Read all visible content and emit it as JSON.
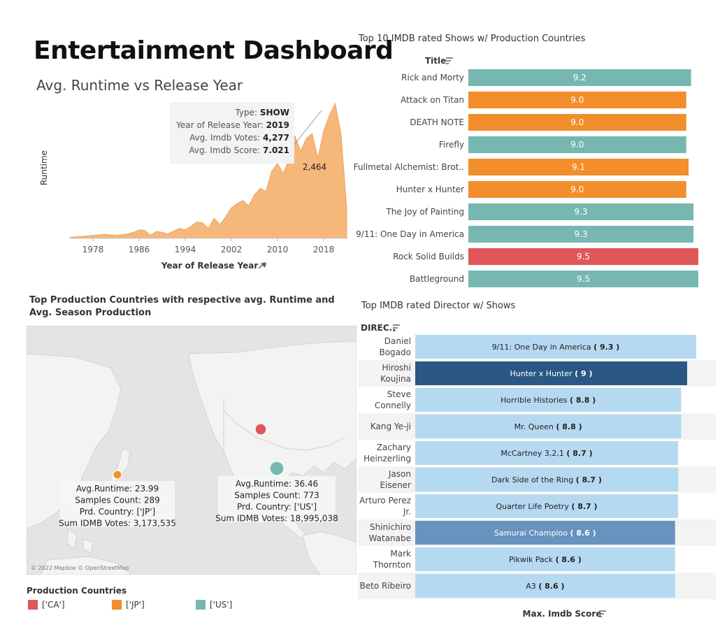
{
  "dashboard_title": "Entertainment Dashboard",
  "area_chart": {
    "title": "Avg. Runtime vs Release Year",
    "ylabel": "Runtime",
    "xlabel": "Year of Release Year",
    "color": "#F5B77A",
    "point_label": "2,464",
    "tooltip": [
      {
        "label": "Type:",
        "value": "SHOW"
      },
      {
        "label": "Year of Release Year:",
        "value": "2019"
      },
      {
        "label": "Avg. Imdb Votes:",
        "value": "4,277"
      },
      {
        "label": "Avg. Imdb Score:",
        "value": "7.021"
      }
    ]
  },
  "shows_chart": {
    "title": "Top 10 IMDB rated Shows w/ Production Countries",
    "header": "Title",
    "colors": {
      "US": "#76B7B2",
      "JP": "#F28E2B",
      "CA": "#E15759"
    }
  },
  "map_chart": {
    "title": "Top Production Countries with respective avg. Runtime and Avg. Season Production",
    "attribution": "© 2022 Mapbox © OpenStreetMap",
    "markers": [
      {
        "country": "['CA']",
        "color": "#E15759",
        "lon": -102,
        "lat": 57
      },
      {
        "country": "['JP']",
        "color": "#F28E2B",
        "lon": 138,
        "lat": 36
      },
      {
        "country": "['US']",
        "color": "#76B7B2",
        "lon": -96,
        "lat": 39
      }
    ],
    "tooltips": [
      {
        "lines": [
          "Avg.Runtime: 23.99",
          "Samples Count: 289",
          "Prd. Country: ['JP']",
          "Sum IDMB Votes: 3,173,535"
        ]
      },
      {
        "lines": [
          "Avg.Runtime: 36.46",
          "Samples Count: 773",
          "Prd. Country: ['US']",
          "Sum IDMB Votes: 18,995,038"
        ]
      }
    ],
    "legend_title": "Production Countries",
    "legend": [
      {
        "label": "['CA']",
        "color": "#E15759"
      },
      {
        "label": "['JP']",
        "color": "#F28E2B"
      },
      {
        "label": "['US']",
        "color": "#76B7B2"
      }
    ]
  },
  "directors_chart": {
    "title": "Top IMDB rated Director w/ Shows",
    "header": "DIREC..",
    "xlabel": "Max. Imdb Score"
  },
  "chart_data": [
    {
      "type": "area",
      "title": "Avg. Runtime vs Release Year",
      "xlabel": "Year of Release Year",
      "ylabel": "Runtime",
      "x_ticks": [
        1978,
        1986,
        1994,
        2002,
        2010,
        2018
      ],
      "xlim": [
        1974,
        2022
      ],
      "ylim": [
        0,
        2700
      ],
      "x": [
        1974,
        1976,
        1978,
        1980,
        1982,
        1984,
        1985,
        1986,
        1987,
        1988,
        1989,
        1990,
        1991,
        1992,
        1993,
        1994,
        1995,
        1996,
        1997,
        1998,
        1999,
        2000,
        2001,
        2002,
        2003,
        2004,
        2005,
        2006,
        2007,
        2008,
        2009,
        2010,
        2011,
        2012,
        2013,
        2014,
        2015,
        2016,
        2017,
        2018,
        2019,
        2020,
        2021,
        2022
      ],
      "y": [
        20,
        40,
        60,
        80,
        60,
        90,
        120,
        170,
        160,
        60,
        140,
        120,
        90,
        150,
        200,
        170,
        240,
        330,
        310,
        200,
        400,
        280,
        430,
        610,
        700,
        760,
        650,
        870,
        1000,
        940,
        1350,
        1500,
        1300,
        1600,
        2050,
        1750,
        2000,
        2100,
        1600,
        2150,
        2464,
        2700,
        2100,
        600
      ],
      "annotation": "2,464"
    },
    {
      "type": "bar",
      "orientation": "horizontal",
      "title": "Top 10 IMDB rated Shows w/ Production Countries",
      "header": "Title",
      "xlim": [
        0,
        9.5
      ],
      "categories": [
        "Rick and Morty",
        "Attack on Titan",
        "DEATH NOTE",
        "Firefly",
        "Fullmetal Alchemist: Brot..",
        "Hunter x Hunter",
        "The Joy of Painting",
        "9/11: One Day in America",
        "Rock Solid Builds",
        "Battleground"
      ],
      "values": [
        9.2,
        9.0,
        9.0,
        9.0,
        9.1,
        9.0,
        9.3,
        9.3,
        9.5,
        9.5
      ],
      "labels": [
        "9.2",
        "9.0",
        "9.0",
        "9.0",
        "9.1",
        "9.0",
        "9.3",
        "9.3",
        "9.5",
        "9.5"
      ],
      "color_by": [
        "US",
        "JP",
        "JP",
        "US",
        "JP",
        "JP",
        "US",
        "US",
        "CA",
        "US"
      ]
    },
    {
      "type": "map",
      "title": "Top Production Countries with respective avg. Runtime and Avg. Season Production",
      "points": [
        {
          "country": "['CA']"
        },
        {
          "country": "['JP']",
          "avg_runtime": 23.99,
          "samples_count": 289,
          "sum_imdb_votes": 3173535
        },
        {
          "country": "['US']",
          "avg_runtime": 36.46,
          "samples_count": 773,
          "sum_imdb_votes": 18995038
        }
      ]
    },
    {
      "type": "bar",
      "orientation": "horizontal",
      "title": "Top IMDB rated Director w/ Shows",
      "xlabel": "Max. Imdb Score",
      "header": "DIREC..",
      "xlim": [
        0,
        9.3
      ],
      "categories": [
        [
          "Daniel",
          "Bogado"
        ],
        [
          "Hiroshi",
          "Koujina"
        ],
        [
          "Steve",
          "Connelly"
        ],
        [
          "Kang Ye-ji"
        ],
        [
          "Zachary",
          "Heinzerling"
        ],
        [
          "Jason",
          "Eisener"
        ],
        [
          "Arturo Perez",
          "Jr."
        ],
        [
          "Shinichiro",
          "Watanabe"
        ],
        [
          "Mark",
          "Thornton"
        ],
        [
          "Beto Ribeiro"
        ]
      ],
      "shows": [
        "9/11: One Day in America",
        "Hunter x Hunter",
        "Horrible Histories",
        "Mr. Queen",
        "McCartney 3,2,1",
        "Dark Side of the Ring",
        "Quarter Life Poetry",
        "Samurai Champloo",
        "Pikwik Pack",
        "A3"
      ],
      "score_labels": [
        "( 9.3 )",
        "( 9 )",
        "( 8.8 )",
        "( 8.8 )",
        "( 8.7 )",
        "( 8.7 )",
        "( 8.7 )",
        "( 8.6 )",
        "( 8.6 )",
        "( 8.6 )"
      ],
      "values": [
        9.3,
        9.0,
        8.8,
        8.8,
        8.7,
        8.7,
        8.7,
        8.6,
        8.6,
        8.6
      ],
      "colors": [
        "#B5D9F0",
        "#2A5783",
        "#B5D9F0",
        "#B5D9F0",
        "#B5D9F0",
        "#B5D9F0",
        "#B5D9F0",
        "#6793BE",
        "#B5D9F0",
        "#B5D9F0"
      ]
    }
  ]
}
